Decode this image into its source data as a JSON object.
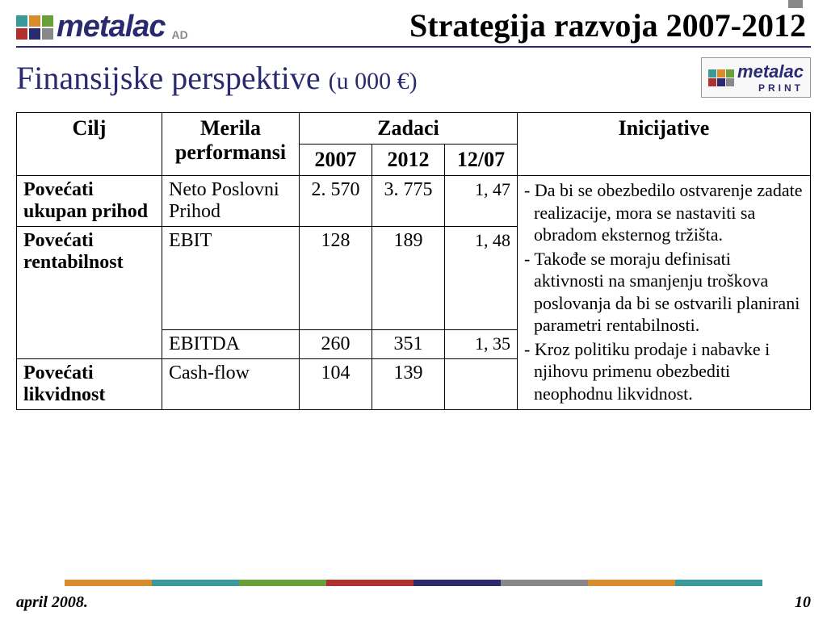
{
  "header": {
    "title": "Strategija razvoja 2007-2012",
    "logo_text": "metalac",
    "logo_suffix": "AD"
  },
  "subtitle": {
    "main": "Finansijske perspektive",
    "unit": "(u 000 €)"
  },
  "print_logo": {
    "text": "metalac",
    "sub": "PRINT"
  },
  "table": {
    "headers": {
      "cilj": "Cilj",
      "merila": "Merila performansi",
      "zadaci": "Zadaci",
      "z_2007": "2007",
      "z_2012": "2012",
      "z_ratio": "12/07",
      "inicijative": "Inicijative"
    },
    "rows": [
      {
        "cilj": "Povećati ukupan prihod",
        "merila": "Neto Poslovni Prihod",
        "v2007": "2. 570",
        "v2012": "3. 775",
        "ratio": "1, 47"
      },
      {
        "cilj": "Povećati rentabilnost",
        "merila": "EBIT",
        "v2007": "128",
        "v2012": "189",
        "ratio": "1, 48"
      },
      {
        "cilj": "",
        "merila": "EBITDA",
        "v2007": "260",
        "v2012": "351",
        "ratio": "1, 35"
      },
      {
        "cilj": "Povećati likvidnost",
        "merila": "Cash-flow",
        "v2007": "104",
        "v2012": "139",
        "ratio": ""
      }
    ],
    "inicijative_items": [
      "- Da bi se obezbedilo ostvarenje zadate realizacije, mora se nastaviti sa obradom eksternog tržišta.",
      "- Takođe se moraju definisati aktivnosti na smanjenju troškova poslovanja da bi se ostvarili planirani parametri rentabilnosti.",
      "- Kroz politiku prodaje i nabavke i njihovu primenu obezbediti neophodnu likvidnost."
    ]
  },
  "footer": {
    "date": "april 2008.",
    "page": "10"
  },
  "colors": {
    "navy": "#2a2a70",
    "gray": "#888888",
    "orange": "#d98c2e",
    "teal": "#3a9a9a",
    "green": "#6aa03a",
    "red": "#b03030",
    "logo_sq": [
      "#3a9a9a",
      "#d98c2e",
      "#6aa03a",
      "#b03030",
      "#2a2a70",
      "#888888"
    ]
  }
}
